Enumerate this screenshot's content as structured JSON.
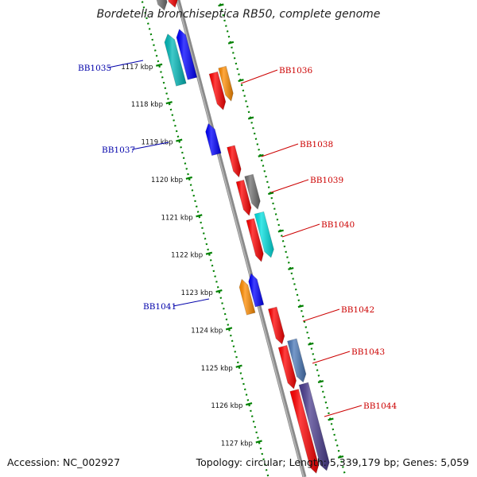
{
  "title": "Bordetella bronchiseptica RB50, complete genome",
  "footer": {
    "accession_label": "Accession:",
    "accession": "NC_002927",
    "topology_text": "Topology: circular; Length: 5,339,179 bp; Genes: 5,059"
  },
  "scale": {
    "unit": "kbp",
    "ticks": [
      {
        "label": "1117 kbp",
        "value": 1117
      },
      {
        "label": "1118 kbp",
        "value": 1118
      },
      {
        "label": "1119 kbp",
        "value": 1119
      },
      {
        "label": "1120 kbp",
        "value": 1120
      },
      {
        "label": "1121 kbp",
        "value": 1121
      },
      {
        "label": "1122 kbp",
        "value": 1122
      },
      {
        "label": "1123 kbp",
        "value": 1123
      },
      {
        "label": "1124 kbp",
        "value": 1124
      },
      {
        "label": "1125 kbp",
        "value": 1125
      },
      {
        "label": "1126 kbp",
        "value": 1126
      },
      {
        "label": "1127 kbp",
        "value": 1127
      }
    ]
  },
  "colors": {
    "red": "#ff0000",
    "orange": "#ff8c00",
    "blue": "#0000ff",
    "cyan": "#00e0e0",
    "teal": "#00b8b8",
    "gray": "#707070",
    "steelblue": "#4a78b8",
    "darkslate": "#4b3d8f",
    "backbone": "#8a8a8a",
    "dots": "#008000",
    "right_label": "#cc0000",
    "left_label": "#0000aa"
  },
  "genes": {
    "labeled": [
      {
        "name": "BB1035",
        "strand": "-"
      },
      {
        "name": "BB1036",
        "strand": "+"
      },
      {
        "name": "BB1037",
        "strand": "-"
      },
      {
        "name": "BB1038",
        "strand": "+"
      },
      {
        "name": "BB1039",
        "strand": "+"
      },
      {
        "name": "BB1040",
        "strand": "+"
      },
      {
        "name": "BB1041",
        "strand": "-"
      },
      {
        "name": "BB1042",
        "strand": "+"
      },
      {
        "name": "BB1043",
        "strand": "+"
      },
      {
        "name": "BB1044",
        "strand": "+"
      }
    ]
  }
}
